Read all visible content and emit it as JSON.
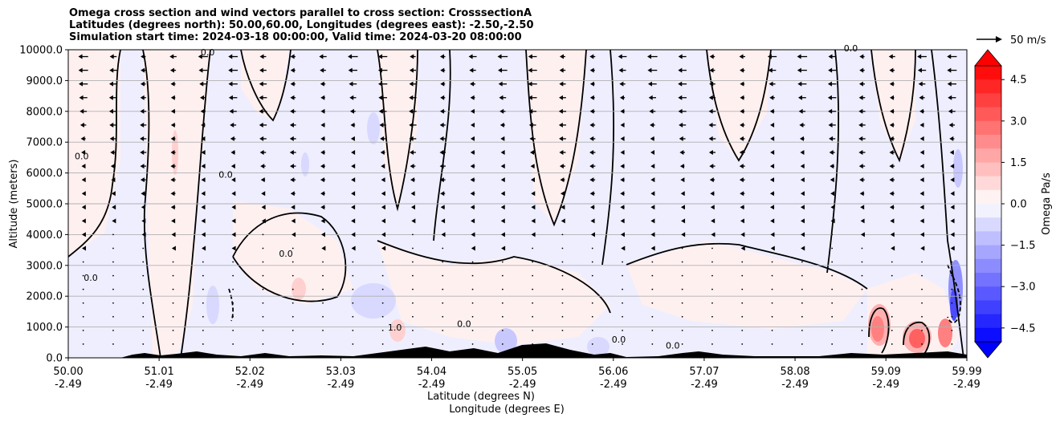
{
  "chart_data": {
    "type": "contourf",
    "title_lines": [
      "Omega cross section and wind vectors parallel to cross section: CrosssectionA",
      "Latitudes (degrees north): 50.00,60.00, Longitudes (degrees east): -2.50,-2.50",
      "Simulation start time: 2024-03-18 00:00:00, Valid time: 2024-03-20 08:00:00"
    ],
    "ylabel": "Altitude (meters)",
    "xlabel_line1": "Latitude (degrees N)",
    "xlabel_line2": "Longitude (degrees E)",
    "ylim": [
      0,
      10000
    ],
    "y_ticks": [
      0,
      1000,
      2000,
      3000,
      4000,
      5000,
      6000,
      7000,
      8000,
      9000,
      10000
    ],
    "y_tick_labels": [
      "0.0",
      "1000.0",
      "2000.0",
      "3000.0",
      "4000.0",
      "5000.0",
      "6000.0",
      "7000.0",
      "8000.0",
      "9000.0",
      "10000.0"
    ],
    "x_ticks": [
      50.0,
      51.01,
      52.02,
      53.03,
      54.04,
      55.05,
      56.06,
      57.07,
      58.08,
      59.09,
      59.99
    ],
    "x_tick_lat_labels": [
      "50.00",
      "51.01",
      "52.02",
      "53.03",
      "54.04",
      "55.05",
      "56.06",
      "57.07",
      "58.08",
      "59.09",
      "59.99"
    ],
    "x_tick_lon_labels": [
      "-2.49",
      "-2.49",
      "-2.49",
      "-2.49",
      "-2.49",
      "-2.49",
      "-2.49",
      "-2.49",
      "-2.49",
      "-2.49",
      "-2.49"
    ],
    "xlim": [
      50.0,
      59.99
    ],
    "grid": "horizontal",
    "colorbar": {
      "label": "Omega Pa/s",
      "range": [
        -5.0,
        5.0
      ],
      "tick_values": [
        4.5,
        3.0,
        1.5,
        0.0,
        -1.5,
        -3.0,
        -4.5
      ],
      "tick_labels": [
        "4.5",
        "3.0",
        "1.5",
        "0.0",
        "−1.5",
        "−3.0",
        "−4.5"
      ],
      "levels_count": 20,
      "extend": "both",
      "low_color": "#0000ff",
      "mid_color": "#ffffff",
      "high_color": "#ff0000"
    },
    "quiver_key": {
      "label": "50 m/s",
      "value": 50
    },
    "wind_vector_direction": "southward (toward lower latitude)",
    "contour_labels": [
      {
        "lat": 51.55,
        "alt": 9820,
        "text": "0.0"
      },
      {
        "lat": 50.15,
        "alt": 6450,
        "text": "0.0"
      },
      {
        "lat": 51.75,
        "alt": 5850,
        "text": "0.0"
      },
      {
        "lat": 50.25,
        "alt": 2500,
        "text": "0.0"
      },
      {
        "lat": 52.42,
        "alt": 3280,
        "text": "0.0"
      },
      {
        "lat": 53.63,
        "alt": 880,
        "text": "1.0"
      },
      {
        "lat": 54.4,
        "alt": 1000,
        "text": "0.0"
      },
      {
        "lat": 56.12,
        "alt": 500,
        "text": "0.0"
      },
      {
        "lat": 56.72,
        "alt": 300,
        "text": "0.0"
      },
      {
        "lat": 58.7,
        "alt": 9950,
        "text": "0.0"
      }
    ]
  }
}
